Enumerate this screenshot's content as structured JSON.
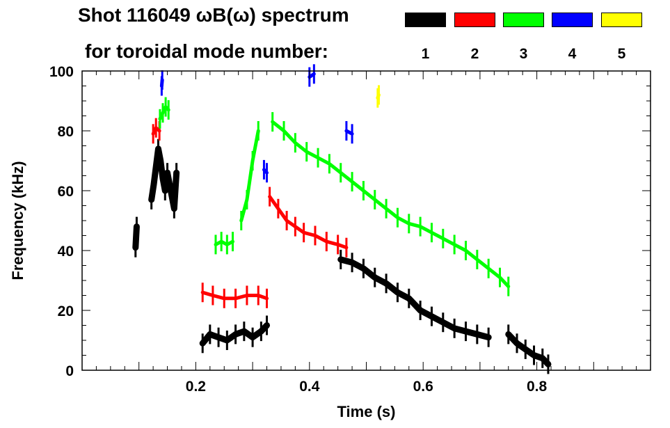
{
  "chart_data": {
    "type": "scatter",
    "title_line1": "Shot 116049 ωB(ω) spectrum",
    "title_line2": "for toroidal mode number:",
    "xlabel": "Time (s)",
    "ylabel": "Frequency (kHz)",
    "xlim": [
      0.0,
      1.0
    ],
    "ylim": [
      0,
      100
    ],
    "x_ticks": [
      0.2,
      0.4,
      0.6,
      0.8
    ],
    "x_tick_labels": [
      "0.2",
      "0.4",
      "0.6",
      "0.8"
    ],
    "y_ticks": [
      0,
      20,
      40,
      60,
      80,
      100
    ],
    "y_tick_labels": [
      "0",
      "20",
      "40",
      "60",
      "80",
      "100"
    ],
    "legend": [
      {
        "mode": "1",
        "color": "#000000"
      },
      {
        "mode": "2",
        "color": "#ff0000"
      },
      {
        "mode": "3",
        "color": "#00ff00"
      },
      {
        "mode": "4",
        "color": "#0000ff"
      },
      {
        "mode": "5",
        "color": "#ffff00"
      }
    ],
    "series": [
      {
        "name": "n=1",
        "color": "#000000",
        "segments": [
          {
            "x": [
              0.094,
              0.096
            ],
            "y": [
              41,
              48
            ]
          },
          {
            "x": [
              0.122,
              0.126,
              0.13,
              0.134,
              0.138,
              0.142,
              0.146,
              0.15,
              0.154,
              0.158,
              0.162,
              0.166
            ],
            "y": [
              57,
              62,
              68,
              74,
              70,
              64,
              60,
              66,
              62,
              58,
              54,
              66
            ]
          },
          {
            "x": [
              0.212,
              0.225,
              0.24,
              0.255,
              0.27,
              0.285,
              0.3,
              0.315,
              0.325
            ],
            "y": [
              9,
              12,
              11,
              10,
              12,
              13,
              11,
              13,
              15
            ]
          },
          {
            "x": [
              0.455,
              0.475,
              0.495,
              0.515,
              0.535,
              0.555,
              0.575,
              0.595,
              0.615,
              0.635,
              0.655,
              0.675,
              0.695,
              0.715
            ],
            "y": [
              37,
              36,
              34,
              31,
              29,
              26,
              24,
              20,
              18,
              16,
              14,
              13,
              12,
              11
            ]
          },
          {
            "x": [
              0.75,
              0.765,
              0.78,
              0.795,
              0.81,
              0.82
            ],
            "y": [
              12,
              9,
              7,
              5,
              4,
              2
            ]
          }
        ]
      },
      {
        "name": "n=2",
        "color": "#ff0000",
        "segments": [
          {
            "x": [
              0.125,
              0.13,
              0.136
            ],
            "y": [
              79,
              81,
              80
            ]
          },
          {
            "x": [
              0.212,
              0.23,
              0.25,
              0.27,
              0.29,
              0.31,
              0.325
            ],
            "y": [
              26,
              25,
              24,
              24,
              25,
              25,
              24
            ]
          },
          {
            "x": [
              0.33,
              0.345,
              0.36,
              0.375,
              0.39,
              0.41,
              0.43,
              0.45,
              0.465
            ],
            "y": [
              58,
              54,
              50,
              48,
              46,
              45,
              43,
              42,
              41
            ]
          }
        ]
      },
      {
        "name": "n=3",
        "color": "#00ff00",
        "segments": [
          {
            "x": [
              0.137,
              0.142,
              0.147,
              0.152
            ],
            "y": [
              84,
              86,
              88,
              87
            ]
          },
          {
            "x": [
              0.235,
              0.245,
              0.255,
              0.265
            ],
            "y": [
              42,
              43,
              42,
              43
            ]
          },
          {
            "x": [
              0.28,
              0.29,
              0.3,
              0.31
            ],
            "y": [
              50,
              57,
              70,
              80
            ]
          },
          {
            "x": [
              0.335,
              0.355,
              0.375,
              0.395,
              0.415,
              0.435,
              0.455,
              0.475,
              0.495,
              0.515,
              0.535,
              0.555,
              0.575,
              0.595,
              0.615,
              0.635,
              0.655,
              0.675,
              0.695,
              0.715,
              0.735,
              0.75
            ],
            "y": [
              83,
              80,
              76,
              73,
              71,
              69,
              66,
              63,
              60,
              57,
              54,
              51,
              49,
              48,
              46,
              44,
              42,
              40,
              37,
              34,
              31,
              28
            ]
          }
        ]
      },
      {
        "name": "n=4",
        "color": "#0000ff",
        "segments": [
          {
            "x": [
              0.14,
              0.141
            ],
            "y": [
              95,
              97
            ]
          },
          {
            "x": [
              0.4,
              0.408
            ],
            "y": [
              98,
              99
            ]
          },
          {
            "x": [
              0.465,
              0.475
            ],
            "y": [
              80,
              79
            ]
          },
          {
            "x": [
              0.32,
              0.325
            ],
            "y": [
              67,
              66
            ]
          }
        ]
      },
      {
        "name": "n=5",
        "color": "#ffff00",
        "segments": [
          {
            "x": [
              0.52,
              0.522
            ],
            "y": [
              91,
              92
            ]
          }
        ]
      }
    ]
  }
}
